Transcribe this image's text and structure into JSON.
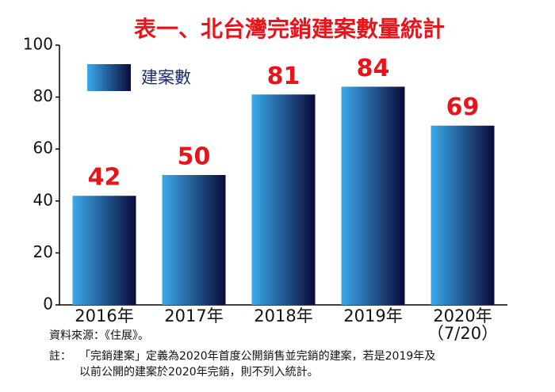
{
  "chart_data": {
    "type": "bar",
    "title": "表一、北台灣完銷建案數量統計",
    "categories": [
      "2016年",
      "2017年",
      "2018年",
      "2019年",
      "2020年\n（7/20）"
    ],
    "series": [
      {
        "name": "建案數",
        "values": [
          42,
          50,
          81,
          84,
          69
        ],
        "color": [
          "#3aaaeb",
          "#0a0a3a"
        ]
      }
    ],
    "ylim": [
      0,
      100
    ],
    "yticks": [
      0,
      20,
      40,
      60,
      80,
      100
    ],
    "grid": false,
    "legend": "top-left",
    "source": "資料來源：《住展》。",
    "note_label": "註：",
    "note_lines": [
      "「完銷建案」定義為2020年首度公開銷售並完銷的建案，若是2019年及",
      "以前公開的建案於2020年完銷，則不列入統計。"
    ]
  }
}
